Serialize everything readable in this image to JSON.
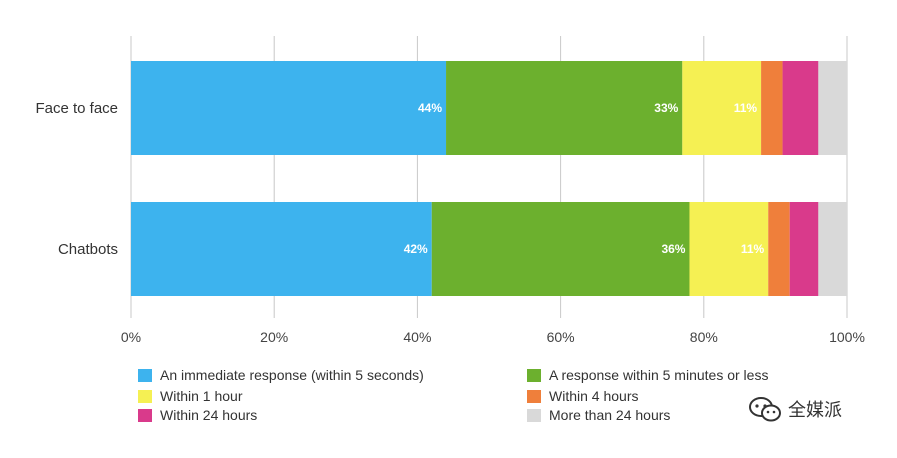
{
  "chart_data": {
    "type": "bar",
    "orientation": "horizontal",
    "stacked": true,
    "categories": [
      "Face to face",
      "Chatbots"
    ],
    "series": [
      {
        "name": "An immediate response (within 5 seconds)",
        "color": "#3db3ee",
        "values": [
          44,
          42
        ],
        "labels": [
          "44%",
          "42%"
        ]
      },
      {
        "name": "A response within 5 minutes or less",
        "color": "#6cb02e",
        "values": [
          33,
          36
        ],
        "labels": [
          "33%",
          "36%"
        ]
      },
      {
        "name": "Within 1 hour",
        "color": "#f5f053",
        "values": [
          11,
          11
        ],
        "labels": [
          "11%",
          "11%"
        ]
      },
      {
        "name": "Within 4 hours",
        "color": "#ef7f3b",
        "values": [
          3,
          3
        ],
        "labels": [
          "",
          ""
        ]
      },
      {
        "name": "Within 24 hours",
        "color": "#d93a8b",
        "values": [
          5,
          4
        ],
        "labels": [
          "",
          ""
        ]
      },
      {
        "name": "More than 24 hours",
        "color": "#d9d9d9",
        "values": [
          4,
          4
        ],
        "labels": [
          "",
          ""
        ]
      }
    ],
    "xlim": [
      0,
      100
    ],
    "xticks": [
      "0%",
      "20%",
      "40%",
      "60%",
      "80%",
      "100%"
    ],
    "grid": true,
    "legend_position": "bottom"
  },
  "watermark": {
    "text": "全媒派",
    "icon": "wechat-icon"
  }
}
